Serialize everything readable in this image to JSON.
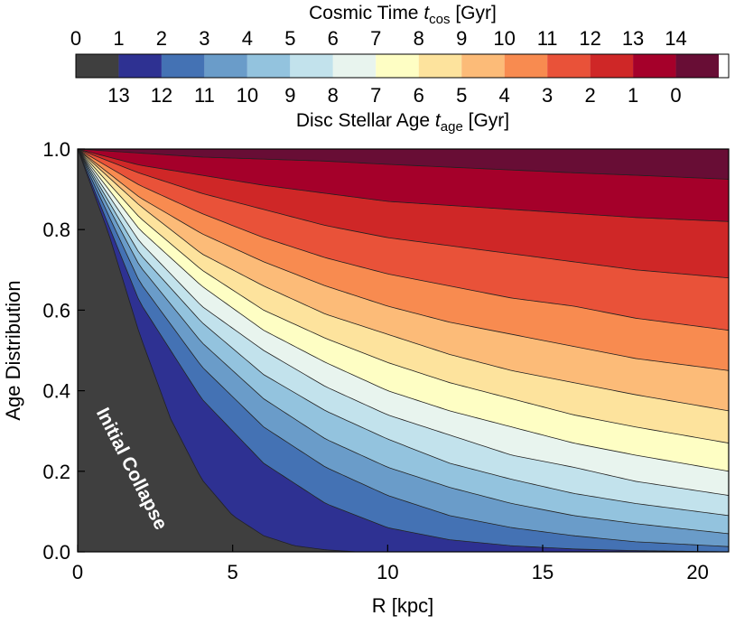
{
  "chart_data": {
    "type": "area",
    "xlabel": "R [kpc]",
    "ylabel": "Age Distribution",
    "xlim": [
      0,
      21
    ],
    "ylim": [
      0,
      1
    ],
    "x_ticks": [
      "0",
      "5",
      "10",
      "15",
      "20"
    ],
    "y_ticks": [
      "0.0",
      "0.2",
      "0.4",
      "0.6",
      "0.8",
      "1.0"
    ],
    "annotation": "Initial Collapse",
    "colorbar": {
      "top_label_pre": "Cosmic Time ",
      "top_label_var": "t",
      "top_label_sub": "cos",
      "top_label_unit": " [Gyr]",
      "bottom_label_pre": "Disc Stellar Age ",
      "bottom_label_var": "t",
      "bottom_label_sub": "age",
      "bottom_label_unit": " [Gyr]",
      "cosmic_time_ticks": [
        "0",
        "1",
        "2",
        "3",
        "4",
        "5",
        "6",
        "7",
        "8",
        "9",
        "10",
        "11",
        "12",
        "13",
        "14"
      ],
      "stellar_age_ticks": [
        "13",
        "12",
        "11",
        "10",
        "9",
        "8",
        "7",
        "6",
        "5",
        "4",
        "3",
        "2",
        "1",
        "0"
      ],
      "colors": [
        "#3f3f3f",
        "#2e3192",
        "#4472b4",
        "#6a9cc9",
        "#93c3de",
        "#c2e2ec",
        "#e8f4ee",
        "#fefec4",
        "#fde39d",
        "#fcbb78",
        "#f88b50",
        "#e95239",
        "#cf2727",
        "#a5002a",
        "#680d35",
        "#ffffff"
      ]
    },
    "series": [
      {
        "values": [
          [
            0,
            1.0
          ],
          [
            1,
            0.79
          ],
          [
            2,
            0.54
          ],
          [
            3,
            0.33
          ],
          [
            4,
            0.18
          ],
          [
            5,
            0.09
          ],
          [
            6,
            0.04
          ],
          [
            7,
            0.015
          ],
          [
            8,
            0.005
          ],
          [
            9,
            0.0
          ],
          [
            21,
            0.0
          ]
        ]
      },
      {
        "values": [
          [
            0,
            1.0
          ],
          [
            2,
            0.62
          ],
          [
            4,
            0.38
          ],
          [
            6,
            0.22
          ],
          [
            8,
            0.12
          ],
          [
            10,
            0.06
          ],
          [
            12,
            0.03
          ],
          [
            14,
            0.015
          ],
          [
            16,
            0.007
          ],
          [
            18,
            0.003
          ],
          [
            21,
            0.0
          ]
        ]
      },
      {
        "values": [
          [
            0,
            1.0
          ],
          [
            2,
            0.67
          ],
          [
            4,
            0.46
          ],
          [
            6,
            0.31
          ],
          [
            8,
            0.21
          ],
          [
            10,
            0.14
          ],
          [
            12,
            0.09
          ],
          [
            14,
            0.06
          ],
          [
            16,
            0.04
          ],
          [
            18,
            0.025
          ],
          [
            21,
            0.013
          ]
        ]
      },
      {
        "values": [
          [
            0,
            1.0
          ],
          [
            2,
            0.71
          ],
          [
            4,
            0.52
          ],
          [
            6,
            0.38
          ],
          [
            8,
            0.28
          ],
          [
            10,
            0.21
          ],
          [
            12,
            0.16
          ],
          [
            14,
            0.12
          ],
          [
            16,
            0.09
          ],
          [
            18,
            0.07
          ],
          [
            21,
            0.045
          ]
        ]
      },
      {
        "values": [
          [
            0,
            1.0
          ],
          [
            2,
            0.74
          ],
          [
            4,
            0.57
          ],
          [
            6,
            0.44
          ],
          [
            8,
            0.35
          ],
          [
            10,
            0.28
          ],
          [
            12,
            0.22
          ],
          [
            14,
            0.18
          ],
          [
            16,
            0.145
          ],
          [
            18,
            0.12
          ],
          [
            21,
            0.09
          ]
        ]
      },
      {
        "values": [
          [
            0,
            1.0
          ],
          [
            2,
            0.77
          ],
          [
            4,
            0.61
          ],
          [
            6,
            0.5
          ],
          [
            8,
            0.41
          ],
          [
            10,
            0.34
          ],
          [
            12,
            0.29
          ],
          [
            14,
            0.24
          ],
          [
            16,
            0.21
          ],
          [
            18,
            0.175
          ],
          [
            21,
            0.14
          ]
        ]
      },
      {
        "values": [
          [
            0,
            1.0
          ],
          [
            2,
            0.8
          ],
          [
            4,
            0.66
          ],
          [
            6,
            0.55
          ],
          [
            8,
            0.47
          ],
          [
            10,
            0.4
          ],
          [
            12,
            0.35
          ],
          [
            14,
            0.31
          ],
          [
            16,
            0.27
          ],
          [
            18,
            0.24
          ],
          [
            21,
            0.2
          ]
        ]
      },
      {
        "values": [
          [
            0,
            1.0
          ],
          [
            2,
            0.83
          ],
          [
            4,
            0.7
          ],
          [
            6,
            0.6
          ],
          [
            8,
            0.53
          ],
          [
            10,
            0.47
          ],
          [
            12,
            0.42
          ],
          [
            14,
            0.38
          ],
          [
            16,
            0.34
          ],
          [
            18,
            0.31
          ],
          [
            21,
            0.27
          ]
        ]
      },
      {
        "values": [
          [
            0,
            1.0
          ],
          [
            2,
            0.86
          ],
          [
            4,
            0.74
          ],
          [
            6,
            0.66
          ],
          [
            8,
            0.59
          ],
          [
            10,
            0.54
          ],
          [
            12,
            0.49
          ],
          [
            14,
            0.45
          ],
          [
            16,
            0.42
          ],
          [
            18,
            0.39
          ],
          [
            21,
            0.35
          ]
        ]
      },
      {
        "values": [
          [
            0,
            1.0
          ],
          [
            2,
            0.88
          ],
          [
            4,
            0.79
          ],
          [
            6,
            0.72
          ],
          [
            8,
            0.66
          ],
          [
            10,
            0.61
          ],
          [
            12,
            0.57
          ],
          [
            14,
            0.54
          ],
          [
            16,
            0.51
          ],
          [
            18,
            0.48
          ],
          [
            21,
            0.45
          ]
        ]
      },
      {
        "values": [
          [
            0,
            1.0
          ],
          [
            2,
            0.91
          ],
          [
            4,
            0.84
          ],
          [
            6,
            0.78
          ],
          [
            8,
            0.73
          ],
          [
            10,
            0.69
          ],
          [
            12,
            0.66
          ],
          [
            14,
            0.63
          ],
          [
            16,
            0.61
          ],
          [
            18,
            0.58
          ],
          [
            21,
            0.55
          ]
        ]
      },
      {
        "values": [
          [
            0,
            1.0
          ],
          [
            2,
            0.94
          ],
          [
            4,
            0.89
          ],
          [
            6,
            0.85
          ],
          [
            8,
            0.81
          ],
          [
            10,
            0.78
          ],
          [
            12,
            0.76
          ],
          [
            14,
            0.74
          ],
          [
            16,
            0.72
          ],
          [
            18,
            0.7
          ],
          [
            21,
            0.68
          ]
        ]
      },
      {
        "values": [
          [
            0,
            1.0
          ],
          [
            2,
            0.96
          ],
          [
            4,
            0.935
          ],
          [
            6,
            0.91
          ],
          [
            8,
            0.89
          ],
          [
            10,
            0.87
          ],
          [
            12,
            0.86
          ],
          [
            14,
            0.85
          ],
          [
            16,
            0.84
          ],
          [
            18,
            0.83
          ],
          [
            21,
            0.82
          ]
        ]
      },
      {
        "values": [
          [
            0,
            1.0
          ],
          [
            2,
            0.99
          ],
          [
            4,
            0.98
          ],
          [
            6,
            0.975
          ],
          [
            8,
            0.97
          ],
          [
            10,
            0.962
          ],
          [
            12,
            0.955
          ],
          [
            14,
            0.948
          ],
          [
            16,
            0.941
          ],
          [
            18,
            0.935
          ],
          [
            21,
            0.925
          ]
        ]
      }
    ]
  }
}
